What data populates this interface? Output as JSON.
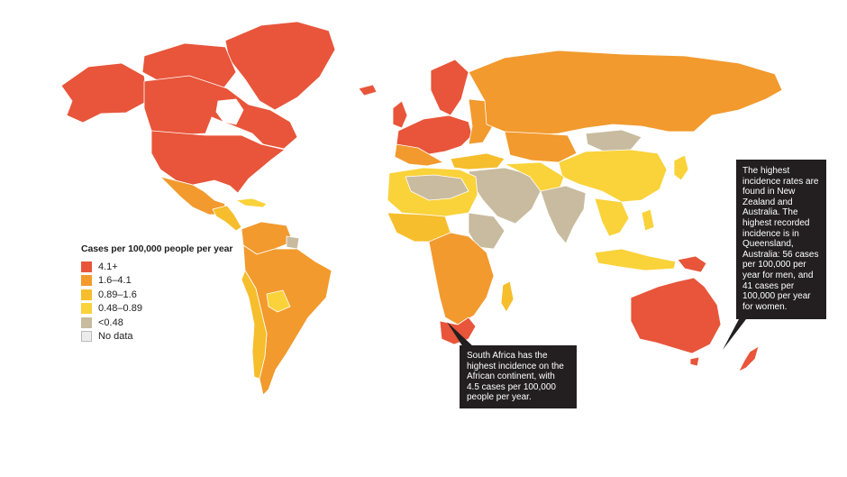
{
  "legend": {
    "title": "Cases per 100,000 people per year",
    "items": [
      {
        "label": "4.1+",
        "color": "#e8553a"
      },
      {
        "label": "1.6–4.1",
        "color": "#f29a2e"
      },
      {
        "label": "0.89–1.6",
        "color": "#f6be2c"
      },
      {
        "label": "0.48–0.89",
        "color": "#fad23a"
      },
      {
        "label": "<0.48",
        "color": "#c8bb9f"
      },
      {
        "label": "No data",
        "color": "#ececec"
      }
    ]
  },
  "callouts": {
    "south_africa": "South Africa has the highest incidence on the African continent, with 4.5 cases per 100,000 people per year.",
    "australia": "The highest incidence rates are found in New Zealand and Australia. The highest recorded incidence is in Queensland, Australia: 56 cases per 100,000 per year for men, and 41 cases per 100,000 per year for women."
  },
  "colors": {
    "high": "#e8553a",
    "medium_high": "#f29a2e",
    "medium": "#f6be2c",
    "low": "#fad23a",
    "very_low": "#c8bb9f",
    "no_data": "#ececec",
    "callout_bg": "#231f20"
  }
}
